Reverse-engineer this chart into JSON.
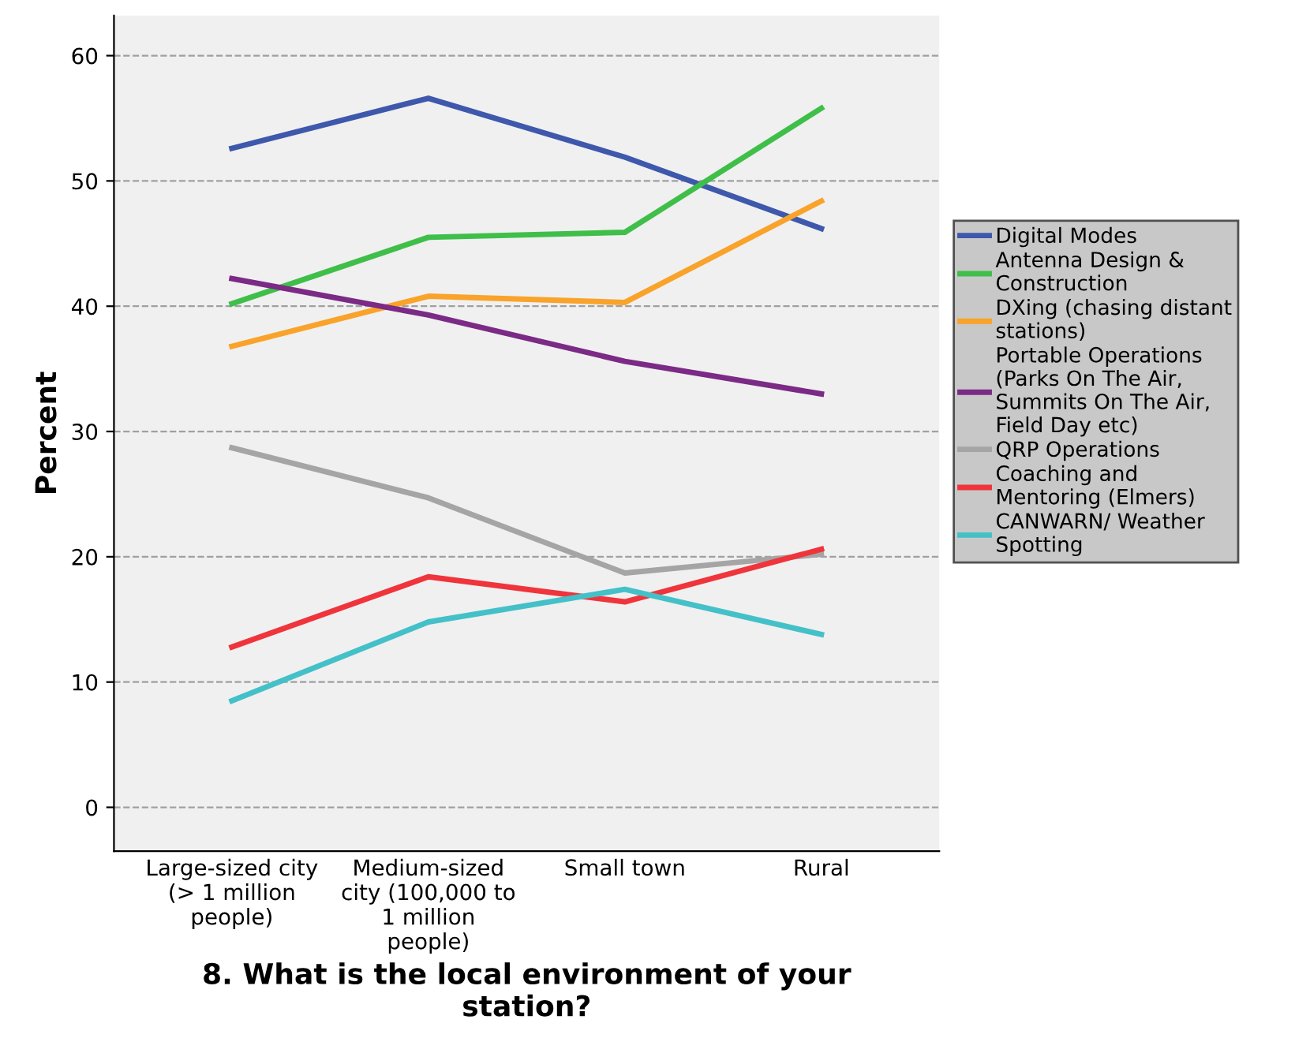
{
  "chart_data": {
    "type": "line",
    "xlabel": "8. What is the local environment of your\nstation?",
    "ylabel": "Percent",
    "categories": [
      "Large-sized city\n(> 1 million\npeople)",
      "Medium-sized\ncity (100,000 to\n1 million\npeople)",
      "Small town",
      "Rural"
    ],
    "series": [
      {
        "name": "Digital Modes",
        "color": "#3e58ac",
        "values": [
          52.6,
          56.6,
          51.9,
          46.2
        ]
      },
      {
        "name": "Antenna Design &\nConstruction",
        "color": "#3fbf4a",
        "values": [
          40.2,
          45.5,
          45.9,
          55.8
        ]
      },
      {
        "name": "DXing (chasing distant\nstations)",
        "color": "#f9a32a",
        "values": [
          36.8,
          40.8,
          40.3,
          48.4
        ]
      },
      {
        "name": "Portable Operations\n(Parks On The Air,\nSummits On The Air,\nField Day etc)",
        "color": "#7b2a86",
        "values": [
          42.2,
          39.3,
          35.6,
          33.0
        ]
      },
      {
        "name": "QRP Operations",
        "color": "#a5a5a5",
        "values": [
          28.7,
          24.7,
          18.7,
          20.2
        ]
      },
      {
        "name": "Coaching and\nMentoring (Elmers)",
        "color": "#f0343c",
        "values": [
          12.8,
          18.4,
          16.4,
          20.6
        ]
      },
      {
        "name": "CANWARN/ Weather\nSpotting",
        "color": "#44c0c8",
        "values": [
          8.5,
          14.8,
          17.4,
          13.8
        ]
      }
    ],
    "ylim": [
      -3.5,
      63.2
    ],
    "yticks": [
      0,
      10,
      20,
      30,
      40,
      50,
      60
    ],
    "grid": "y",
    "legend": "right",
    "marker": "none",
    "line_style": "solid"
  }
}
